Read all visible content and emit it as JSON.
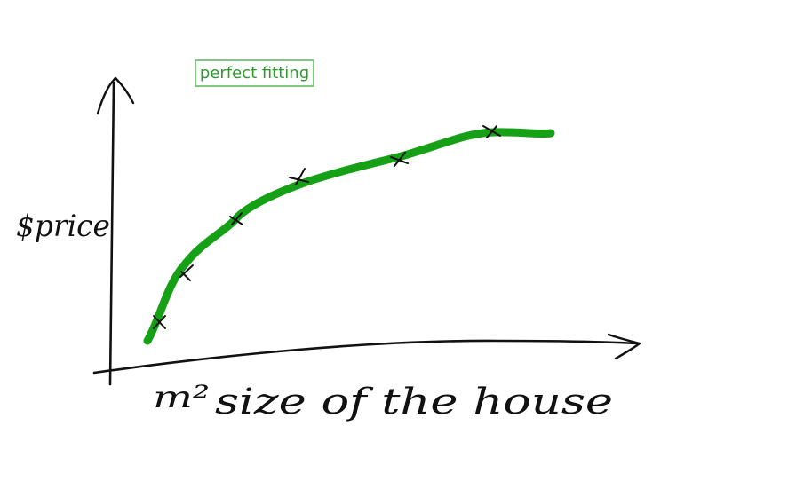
{
  "annotation": {
    "label": "perfect fitting",
    "border_color": "#7fc97f",
    "text_color": "#2e9a2e"
  },
  "axes": {
    "y_label": "$price",
    "x_unit": "m²",
    "x_label": "size of the house"
  },
  "colors": {
    "curve": "#16a016",
    "ink": "#111111"
  },
  "data_points_marked": 6
}
